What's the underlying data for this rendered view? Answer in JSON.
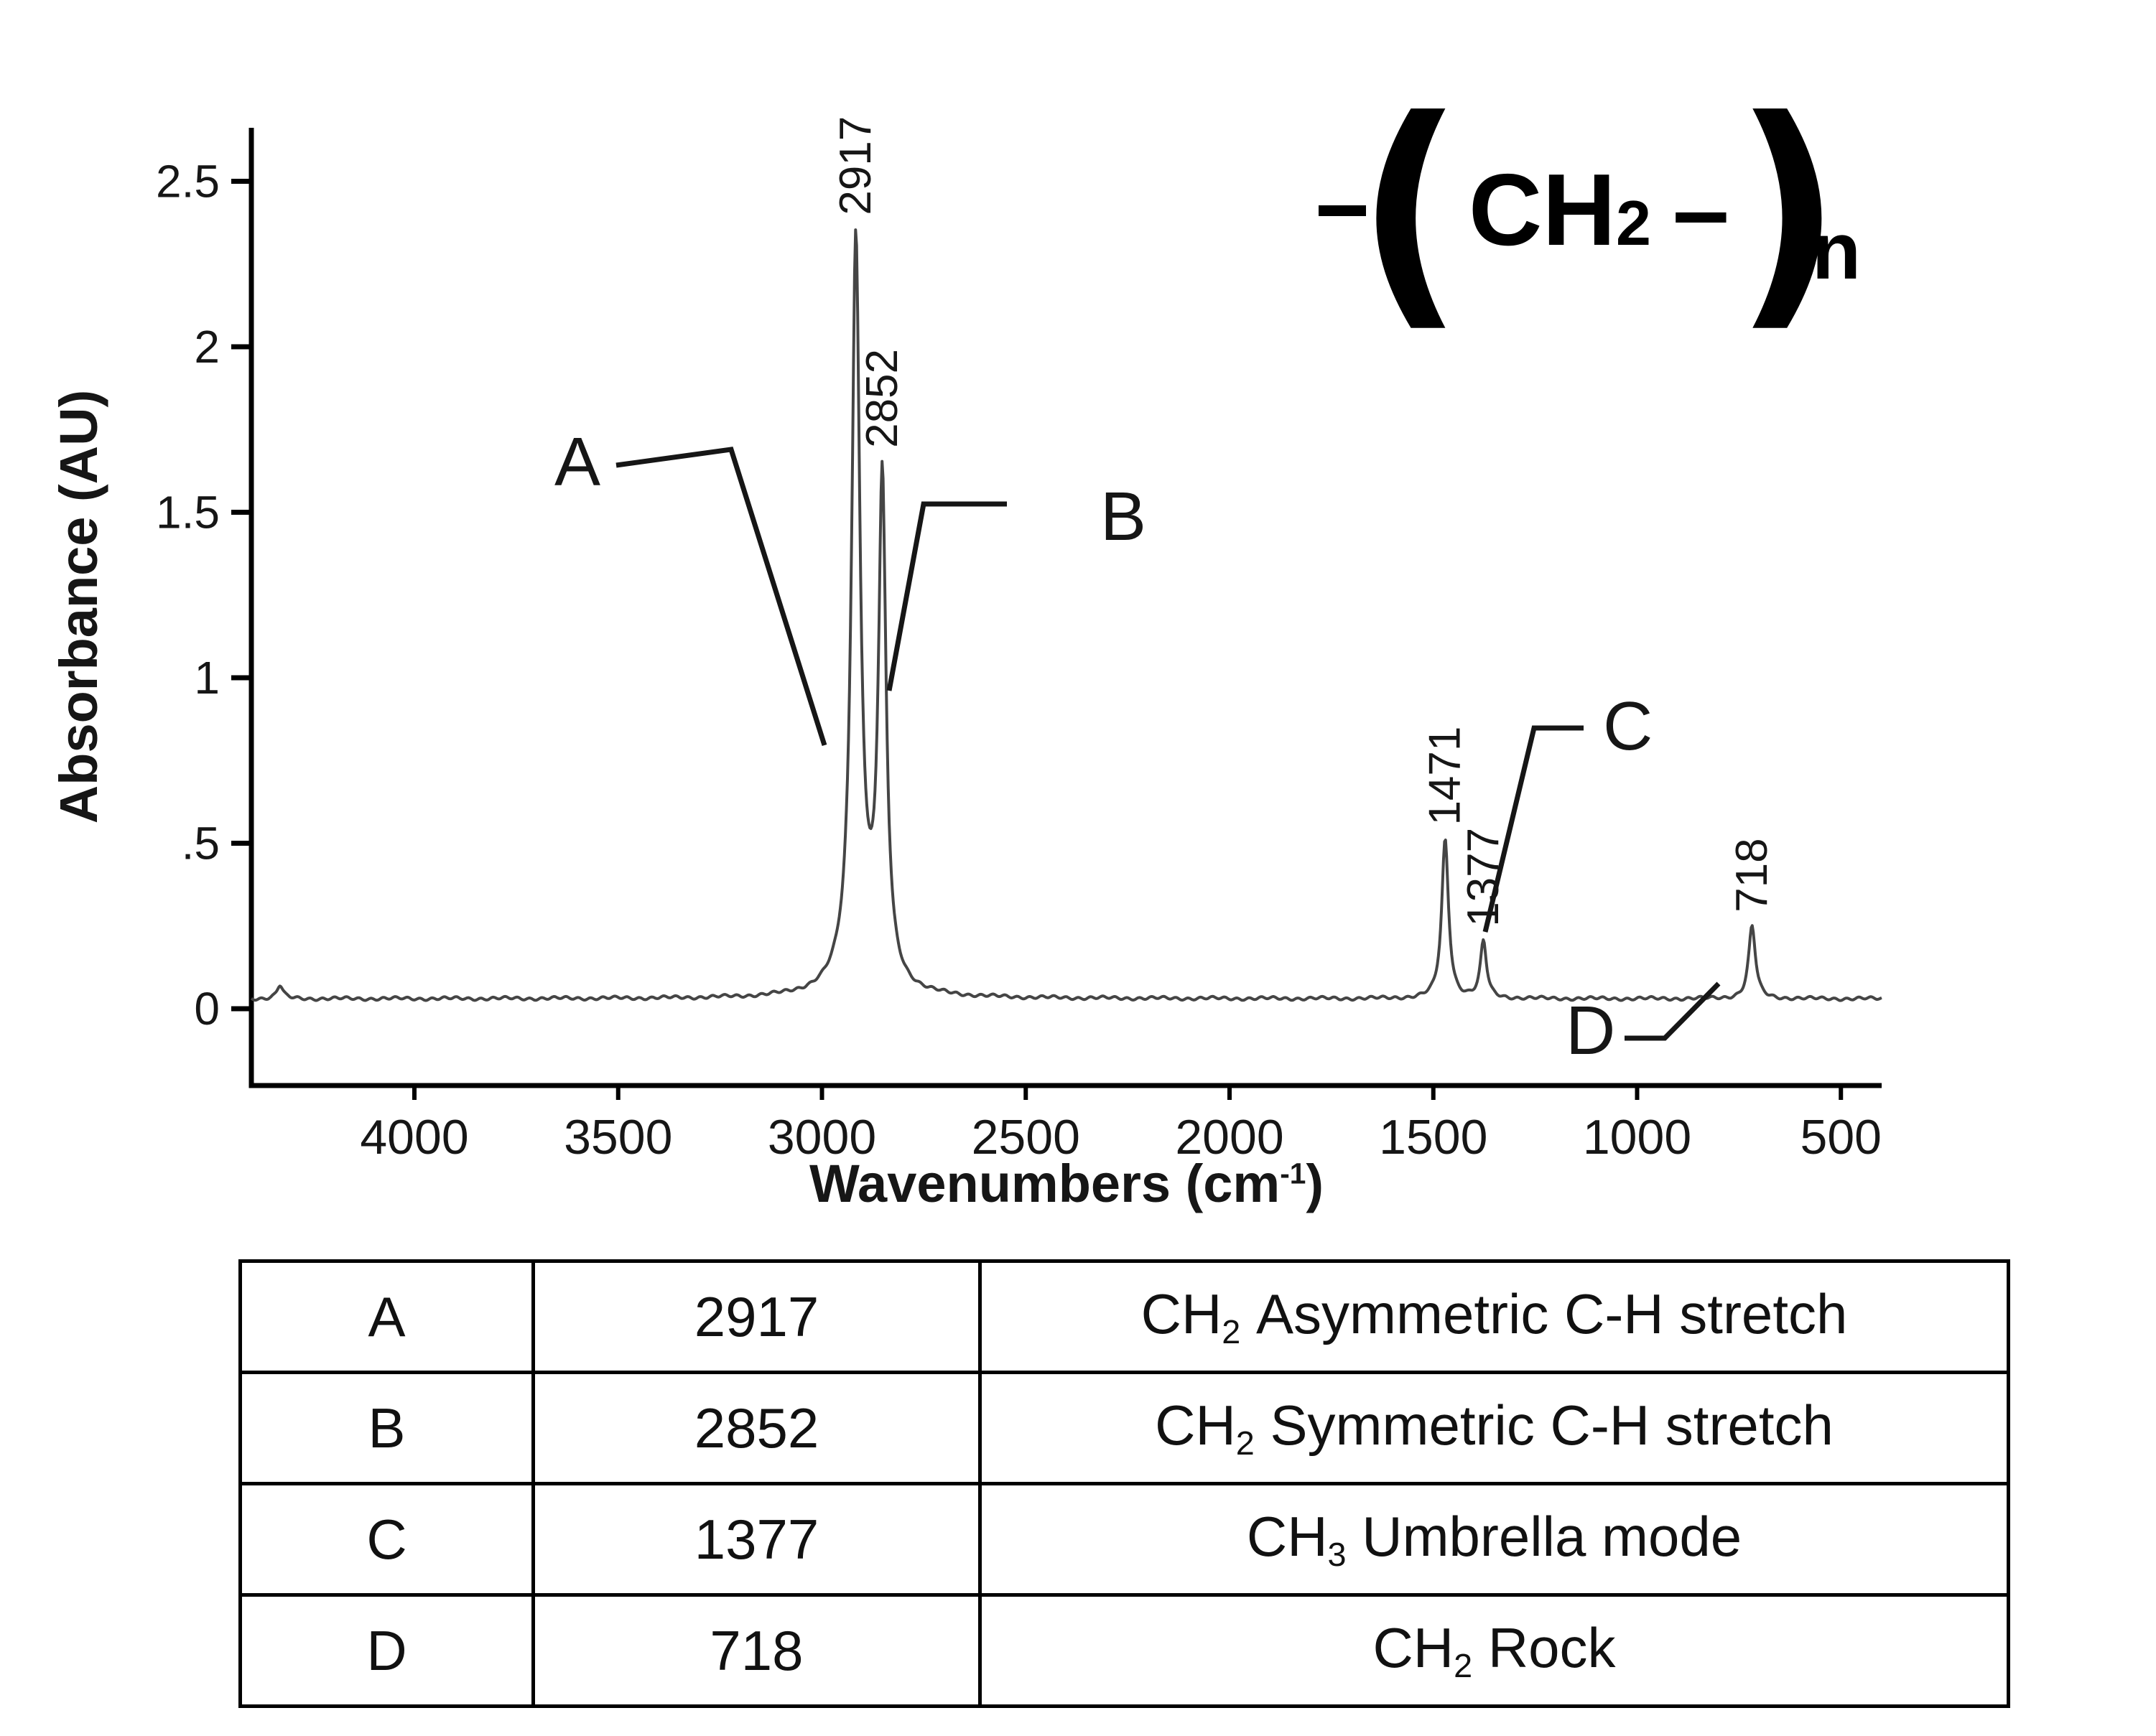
{
  "chart_data": {
    "type": "line",
    "xlabel": "Wavenumbers (cm-1)",
    "ylabel": "Absorbance (AU)",
    "x_axis_reversed": true,
    "x_range": [
      4400,
      400
    ],
    "y_range": [
      -0.25,
      2.65
    ],
    "x_ticks": [
      4000,
      3500,
      3000,
      2500,
      2000,
      1500,
      1000,
      500
    ],
    "y_ticks": [
      {
        "value": 0,
        "label": "0"
      },
      {
        "value": 0.5,
        "label": ".5"
      },
      {
        "value": 1,
        "label": "1"
      },
      {
        "value": 1.5,
        "label": "1.5"
      },
      {
        "value": 2,
        "label": "2"
      },
      {
        "value": 2.5,
        "label": "2.5"
      }
    ],
    "grid": false,
    "legend": false,
    "baseline_absorbance": 0.03,
    "peaks": [
      {
        "wavenumber": 2917,
        "absorbance": 2.18,
        "width": 12,
        "label": "2917"
      },
      {
        "wavenumber": 2852,
        "absorbance": 1.48,
        "width": 11,
        "label": "2852"
      },
      {
        "wavenumber": 2900,
        "absorbance": 0.12,
        "width": 55,
        "label": ""
      },
      {
        "wavenumber": 1471,
        "absorbance": 0.48,
        "width": 10,
        "label": "1471"
      },
      {
        "wavenumber": 1377,
        "absorbance": 0.17,
        "width": 9,
        "label": "1377"
      },
      {
        "wavenumber": 718,
        "absorbance": 0.22,
        "width": 10,
        "label": "718"
      },
      {
        "wavenumber": 4330,
        "absorbance": 0.04,
        "width": 9,
        "label": ""
      }
    ],
    "annotations": [
      {
        "label": "A",
        "peak": 2917
      },
      {
        "label": "B",
        "peak": 2852
      },
      {
        "label": "C",
        "peak": 1377
      },
      {
        "label": "D",
        "peak": 718
      }
    ]
  },
  "axis": {
    "ylabel": "Absorbance (AU)",
    "xlabel_main": "Wavenumbers (cm",
    "xlabel_sup": "-1",
    "xlabel_close": ")"
  },
  "formula": {
    "open": "(",
    "group": "CH",
    "group_sub": "2",
    "bond": "–",
    "close": ")",
    "repeat": "n"
  },
  "table": {
    "rows": [
      {
        "label": "A",
        "wavenumber": "2917",
        "formula": "CH",
        "formula_sub": "2",
        "description": "Asymmetric C-H stretch"
      },
      {
        "label": "B",
        "wavenumber": "2852",
        "formula": "CH",
        "formula_sub": "2",
        "description": "Symmetric C-H stretch"
      },
      {
        "label": "C",
        "wavenumber": "1377",
        "formula": "CH",
        "formula_sub": "3",
        "description": "Umbrella mode"
      },
      {
        "label": "D",
        "wavenumber": "718",
        "formula": "CH",
        "formula_sub": "2",
        "description": "Rock"
      }
    ]
  }
}
